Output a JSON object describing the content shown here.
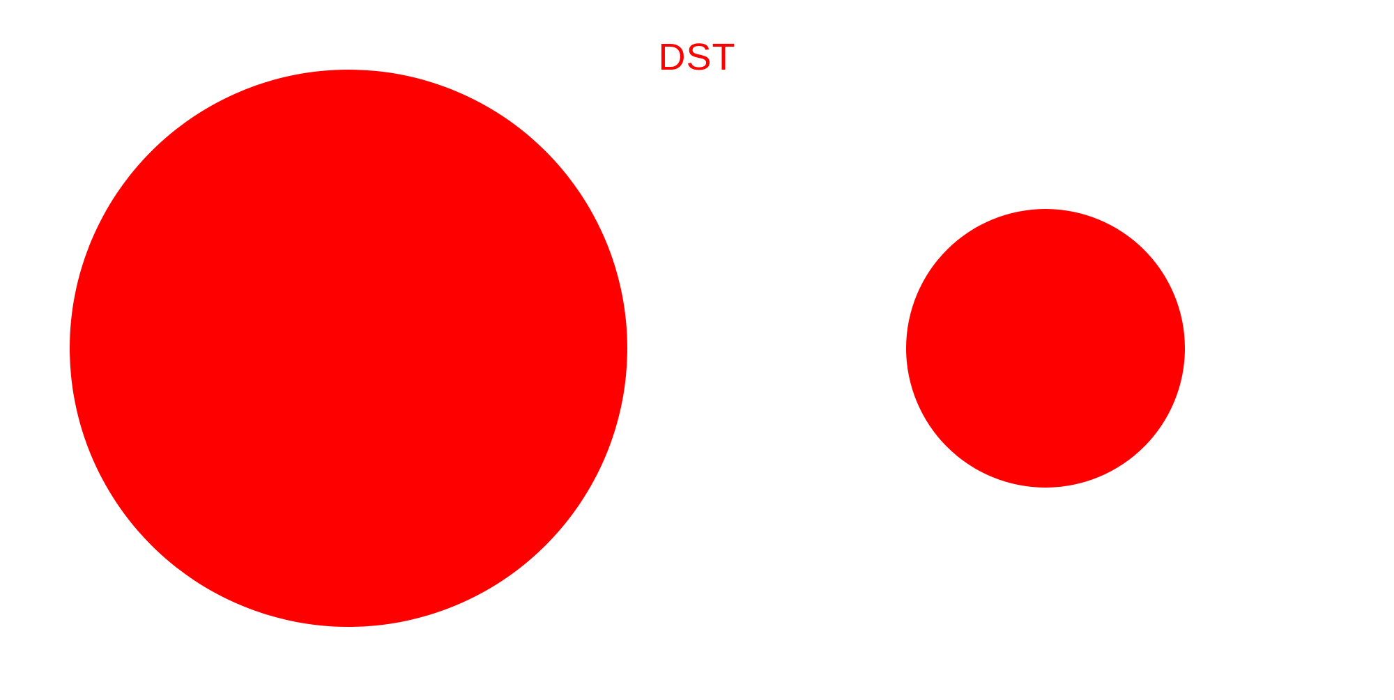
{
  "page": {
    "title": "DST",
    "background_color": "#ffffff",
    "accent_color": "#ff0000"
  },
  "shapes": [
    {
      "name": "large-red-circle",
      "shape": "circle",
      "color": "#ff0000"
    },
    {
      "name": "small-red-circle",
      "shape": "circle",
      "color": "#ff0000"
    }
  ]
}
